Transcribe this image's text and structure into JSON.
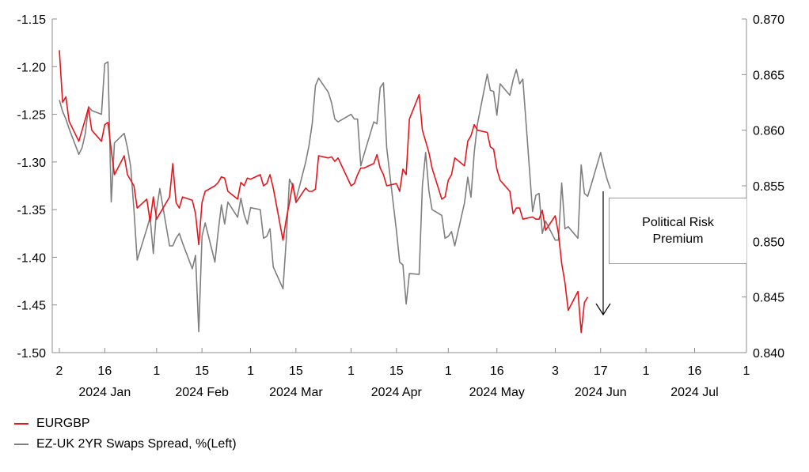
{
  "chart_data": {
    "type": "line",
    "title": "",
    "x_ticks": [
      {
        "date": "2024-01-02",
        "label": "2"
      },
      {
        "date": "2024-01-16",
        "label": "16"
      },
      {
        "date": "2024-02-01",
        "label": "1"
      },
      {
        "date": "2024-02-15",
        "label": "15"
      },
      {
        "date": "2024-03-01",
        "label": "1"
      },
      {
        "date": "2024-03-15",
        "label": "15"
      },
      {
        "date": "2024-04-01",
        "label": "1"
      },
      {
        "date": "2024-04-15",
        "label": "15"
      },
      {
        "date": "2024-05-01",
        "label": "1"
      },
      {
        "date": "2024-05-16",
        "label": "16"
      },
      {
        "date": "2024-06-03",
        "label": "3"
      },
      {
        "date": "2024-06-17",
        "label": "17"
      },
      {
        "date": "2024-07-01",
        "label": "1"
      },
      {
        "date": "2024-07-16",
        "label": "16"
      },
      {
        "date": "2024-08-01",
        "label": "1"
      }
    ],
    "month_labels": [
      {
        "date": "2024-01-16",
        "label": "2024 Jan"
      },
      {
        "date": "2024-02-15",
        "label": "2024 Feb"
      },
      {
        "date": "2024-03-15",
        "label": "2024 Mar"
      },
      {
        "date": "2024-04-15",
        "label": "2024 Apr"
      },
      {
        "date": "2024-05-16",
        "label": "2024 May"
      },
      {
        "date": "2024-06-17",
        "label": "2024 Jun"
      },
      {
        "date": "2024-07-16",
        "label": "2024 Jul"
      }
    ],
    "x_range": [
      "2024-01-02",
      "2024-08-01"
    ],
    "y_left": {
      "ylim": [
        -1.5,
        -1.15
      ],
      "ticks": [
        -1.15,
        -1.2,
        -1.25,
        -1.3,
        -1.35,
        -1.4,
        -1.45,
        -1.5
      ],
      "tick_labels": [
        "-1.15",
        "-1.20",
        "-1.25",
        "-1.30",
        "-1.35",
        "-1.40",
        "-1.45",
        "-1.50"
      ]
    },
    "y_right": {
      "ylim": [
        0.84,
        0.87
      ],
      "ticks": [
        0.87,
        0.865,
        0.86,
        0.855,
        0.85,
        0.845,
        0.84
      ],
      "tick_labels": [
        "0.870",
        "0.865",
        "0.860",
        "0.855",
        "0.850",
        "0.845",
        "0.840"
      ]
    },
    "grid": false,
    "legend_position": "bottom-left",
    "series": [
      {
        "name": "EURGBP",
        "axis": "right",
        "color": "#e8141b",
        "points": [
          [
            "2024-01-02",
            0.8672
          ],
          [
            "2024-01-03",
            0.8625
          ],
          [
            "2024-01-04",
            0.863
          ],
          [
            "2024-01-05",
            0.8608
          ],
          [
            "2024-01-08",
            0.859
          ],
          [
            "2024-01-09",
            0.86
          ],
          [
            "2024-01-10",
            0.861
          ],
          [
            "2024-01-11",
            0.862
          ],
          [
            "2024-01-12",
            0.86
          ],
          [
            "2024-01-15",
            0.859
          ],
          [
            "2024-01-16",
            0.8605
          ],
          [
            "2024-01-17",
            0.8607
          ],
          [
            "2024-01-18",
            0.8582
          ],
          [
            "2024-01-19",
            0.856
          ],
          [
            "2024-01-22",
            0.8577
          ],
          [
            "2024-01-23",
            0.856
          ],
          [
            "2024-01-24",
            0.8555
          ],
          [
            "2024-01-25",
            0.855
          ],
          [
            "2024-01-26",
            0.853
          ],
          [
            "2024-01-29",
            0.8538
          ],
          [
            "2024-01-30",
            0.8518
          ],
          [
            "2024-01-31",
            0.854
          ],
          [
            "2024-02-01",
            0.852
          ],
          [
            "2024-02-02",
            0.8525
          ],
          [
            "2024-02-05",
            0.854
          ],
          [
            "2024-02-06",
            0.857
          ],
          [
            "2024-02-07",
            0.8535
          ],
          [
            "2024-02-08",
            0.853
          ],
          [
            "2024-02-09",
            0.854
          ],
          [
            "2024-02-12",
            0.8537
          ],
          [
            "2024-02-13",
            0.8525
          ],
          [
            "2024-02-14",
            0.8497
          ],
          [
            "2024-02-15",
            0.8535
          ],
          [
            "2024-02-16",
            0.8545
          ],
          [
            "2024-02-19",
            0.855
          ],
          [
            "2024-02-20",
            0.8553
          ],
          [
            "2024-02-21",
            0.8558
          ],
          [
            "2024-02-22",
            0.8557
          ],
          [
            "2024-02-23",
            0.8545
          ],
          [
            "2024-02-26",
            0.8538
          ],
          [
            "2024-02-27",
            0.8553
          ],
          [
            "2024-02-28",
            0.855
          ],
          [
            "2024-02-29",
            0.8557
          ],
          [
            "2024-03-01",
            0.8556
          ],
          [
            "2024-03-04",
            0.856
          ],
          [
            "2024-03-05",
            0.855
          ],
          [
            "2024-03-06",
            0.8552
          ],
          [
            "2024-03-07",
            0.856
          ],
          [
            "2024-03-08",
            0.8548
          ],
          [
            "2024-03-11",
            0.8501
          ],
          [
            "2024-03-12",
            0.852
          ],
          [
            "2024-03-13",
            0.8535
          ],
          [
            "2024-03-14",
            0.8552
          ],
          [
            "2024-03-15",
            0.8535
          ],
          [
            "2024-03-18",
            0.8548
          ],
          [
            "2024-03-19",
            0.8545
          ],
          [
            "2024-03-20",
            0.8545
          ],
          [
            "2024-03-21",
            0.8547
          ],
          [
            "2024-03-22",
            0.8577
          ],
          [
            "2024-03-25",
            0.8575
          ],
          [
            "2024-03-26",
            0.8576
          ],
          [
            "2024-03-27",
            0.8572
          ],
          [
            "2024-03-28",
            0.8575
          ],
          [
            "2024-04-01",
            0.855
          ],
          [
            "2024-04-02",
            0.8552
          ],
          [
            "2024-04-03",
            0.856
          ],
          [
            "2024-04-04",
            0.8566
          ],
          [
            "2024-04-05",
            0.8566
          ],
          [
            "2024-04-08",
            0.857
          ],
          [
            "2024-04-09",
            0.8578
          ],
          [
            "2024-04-10",
            0.8566
          ],
          [
            "2024-04-11",
            0.856
          ],
          [
            "2024-04-12",
            0.855
          ],
          [
            "2024-04-15",
            0.8552
          ],
          [
            "2024-04-16",
            0.8545
          ],
          [
            "2024-04-17",
            0.8565
          ],
          [
            "2024-04-18",
            0.856
          ],
          [
            "2024-04-19",
            0.861
          ],
          [
            "2024-04-22",
            0.8632
          ],
          [
            "2024-04-23",
            0.86
          ],
          [
            "2024-04-24",
            0.859
          ],
          [
            "2024-04-25",
            0.858
          ],
          [
            "2024-04-26",
            0.8566
          ],
          [
            "2024-04-29",
            0.8538
          ],
          [
            "2024-04-30",
            0.854
          ],
          [
            "2024-05-01",
            0.8555
          ],
          [
            "2024-05-02",
            0.856
          ],
          [
            "2024-05-03",
            0.8575
          ],
          [
            "2024-05-06",
            0.8568
          ],
          [
            "2024-05-07",
            0.859
          ],
          [
            "2024-05-08",
            0.8595
          ],
          [
            "2024-05-09",
            0.8605
          ],
          [
            "2024-05-10",
            0.86
          ],
          [
            "2024-05-13",
            0.8598
          ],
          [
            "2024-05-14",
            0.8585
          ],
          [
            "2024-05-15",
            0.8583
          ],
          [
            "2024-05-16",
            0.8565
          ],
          [
            "2024-05-17",
            0.8555
          ],
          [
            "2024-05-20",
            0.8545
          ],
          [
            "2024-05-21",
            0.8525
          ],
          [
            "2024-05-22",
            0.853
          ],
          [
            "2024-05-23",
            0.853
          ],
          [
            "2024-05-24",
            0.852
          ],
          [
            "2024-05-27",
            0.8522
          ],
          [
            "2024-05-28",
            0.852
          ],
          [
            "2024-05-29",
            0.852
          ],
          [
            "2024-05-30",
            0.8528
          ],
          [
            "2024-05-31",
            0.851
          ],
          [
            "2024-06-03",
            0.8523
          ],
          [
            "2024-06-04",
            0.8507
          ],
          [
            "2024-06-05",
            0.848
          ],
          [
            "2024-06-06",
            0.8463
          ],
          [
            "2024-06-07",
            0.8438
          ],
          [
            "2024-06-10",
            0.8455
          ],
          [
            "2024-06-11",
            0.8418
          ],
          [
            "2024-06-12",
            0.8445
          ],
          [
            "2024-06-13",
            0.845
          ]
        ]
      },
      {
        "name": "EZ-UK 2YR Swaps Spread, %(Left)",
        "axis": "left",
        "color": "#7f7f7f",
        "points": [
          [
            "2024-01-02",
            -1.235
          ],
          [
            "2024-01-03",
            -1.247
          ],
          [
            "2024-01-04",
            -1.255
          ],
          [
            "2024-01-05",
            -1.265
          ],
          [
            "2024-01-08",
            -1.292
          ],
          [
            "2024-01-09",
            -1.285
          ],
          [
            "2024-01-10",
            -1.27
          ],
          [
            "2024-01-11",
            -1.242
          ],
          [
            "2024-01-12",
            -1.246
          ],
          [
            "2024-01-15",
            -1.25
          ],
          [
            "2024-01-16",
            -1.197
          ],
          [
            "2024-01-17",
            -1.195
          ],
          [
            "2024-01-18",
            -1.342
          ],
          [
            "2024-01-19",
            -1.28
          ],
          [
            "2024-01-22",
            -1.27
          ],
          [
            "2024-01-23",
            -1.285
          ],
          [
            "2024-01-24",
            -1.305
          ],
          [
            "2024-01-25",
            -1.35
          ],
          [
            "2024-01-26",
            -1.403
          ],
          [
            "2024-01-29",
            -1.37
          ],
          [
            "2024-01-30",
            -1.358
          ],
          [
            "2024-01-31",
            -1.396
          ],
          [
            "2024-02-01",
            -1.35
          ],
          [
            "2024-02-02",
            -1.328
          ],
          [
            "2024-02-05",
            -1.388
          ],
          [
            "2024-02-06",
            -1.388
          ],
          [
            "2024-02-07",
            -1.38
          ],
          [
            "2024-02-08",
            -1.375
          ],
          [
            "2024-02-09",
            -1.385
          ],
          [
            "2024-02-12",
            -1.412
          ],
          [
            "2024-02-13",
            -1.398
          ],
          [
            "2024-02-14",
            -1.478
          ],
          [
            "2024-02-15",
            -1.378
          ],
          [
            "2024-02-16",
            -1.364
          ],
          [
            "2024-02-19",
            -1.405
          ],
          [
            "2024-02-20",
            -1.373
          ],
          [
            "2024-02-21",
            -1.345
          ],
          [
            "2024-02-22",
            -1.365
          ],
          [
            "2024-02-23",
            -1.342
          ],
          [
            "2024-02-26",
            -1.358
          ],
          [
            "2024-02-27",
            -1.338
          ],
          [
            "2024-02-28",
            -1.355
          ],
          [
            "2024-02-29",
            -1.365
          ],
          [
            "2024-03-01",
            -1.348
          ],
          [
            "2024-03-04",
            -1.35
          ],
          [
            "2024-03-05",
            -1.38
          ],
          [
            "2024-03-06",
            -1.378
          ],
          [
            "2024-03-07",
            -1.37
          ],
          [
            "2024-03-08",
            -1.41
          ],
          [
            "2024-03-11",
            -1.433
          ],
          [
            "2024-03-12",
            -1.382
          ],
          [
            "2024-03-13",
            -1.318
          ],
          [
            "2024-03-14",
            -1.325
          ],
          [
            "2024-03-15",
            -1.34
          ],
          [
            "2024-03-18",
            -1.3
          ],
          [
            "2024-03-19",
            -1.283
          ],
          [
            "2024-03-20",
            -1.26
          ],
          [
            "2024-03-21",
            -1.22
          ],
          [
            "2024-03-22",
            -1.212
          ],
          [
            "2024-03-25",
            -1.227
          ],
          [
            "2024-03-26",
            -1.238
          ],
          [
            "2024-03-27",
            -1.255
          ],
          [
            "2024-03-28",
            -1.258
          ],
          [
            "2024-04-01",
            -1.25
          ],
          [
            "2024-04-02",
            -1.255
          ],
          [
            "2024-04-03",
            -1.255
          ],
          [
            "2024-04-04",
            -1.304
          ],
          [
            "2024-04-05",
            -1.292
          ],
          [
            "2024-04-08",
            -1.258
          ],
          [
            "2024-04-09",
            -1.26
          ],
          [
            "2024-04-10",
            -1.222
          ],
          [
            "2024-04-11",
            -1.217
          ],
          [
            "2024-04-12",
            -1.285
          ],
          [
            "2024-04-15",
            -1.372
          ],
          [
            "2024-04-16",
            -1.405
          ],
          [
            "2024-04-17",
            -1.408
          ],
          [
            "2024-04-18",
            -1.449
          ],
          [
            "2024-04-19",
            -1.417
          ],
          [
            "2024-04-22",
            -1.418
          ],
          [
            "2024-04-23",
            -1.325
          ],
          [
            "2024-04-24",
            -1.29
          ],
          [
            "2024-04-25",
            -1.33
          ],
          [
            "2024-04-26",
            -1.35
          ],
          [
            "2024-04-29",
            -1.356
          ],
          [
            "2024-04-30",
            -1.38
          ],
          [
            "2024-05-01",
            -1.378
          ],
          [
            "2024-05-02",
            -1.373
          ],
          [
            "2024-05-03",
            -1.388
          ],
          [
            "2024-05-06",
            -1.343
          ],
          [
            "2024-05-07",
            -1.316
          ],
          [
            "2024-05-08",
            -1.337
          ],
          [
            "2024-05-09",
            -1.29
          ],
          [
            "2024-05-10",
            -1.26
          ],
          [
            "2024-05-13",
            -1.208
          ],
          [
            "2024-05-14",
            -1.225
          ],
          [
            "2024-05-15",
            -1.226
          ],
          [
            "2024-05-16",
            -1.251
          ],
          [
            "2024-05-17",
            -1.218
          ],
          [
            "2024-05-20",
            -1.23
          ],
          [
            "2024-05-21",
            -1.214
          ],
          [
            "2024-05-22",
            -1.203
          ],
          [
            "2024-05-23",
            -1.218
          ],
          [
            "2024-05-24",
            -1.213
          ],
          [
            "2024-05-27",
            -1.352
          ],
          [
            "2024-05-28",
            -1.335
          ],
          [
            "2024-05-29",
            -1.333
          ],
          [
            "2024-05-30",
            -1.375
          ],
          [
            "2024-05-31",
            -1.362
          ],
          [
            "2024-06-03",
            -1.382
          ],
          [
            "2024-06-04",
            -1.382
          ],
          [
            "2024-06-05",
            -1.322
          ],
          [
            "2024-06-06",
            -1.37
          ],
          [
            "2024-06-07",
            -1.368
          ],
          [
            "2024-06-10",
            -1.38
          ],
          [
            "2024-06-11",
            -1.303
          ],
          [
            "2024-06-12",
            -1.333
          ],
          [
            "2024-06-13",
            -1.336
          ],
          [
            "2024-06-14",
            -1.325
          ],
          [
            "2024-06-17",
            -1.29
          ],
          [
            "2024-06-18",
            -1.305
          ],
          [
            "2024-06-19",
            -1.318
          ],
          [
            "2024-06-20",
            -1.328
          ]
        ]
      }
    ],
    "annotation": {
      "lines": [
        "Political Risk",
        "Premium"
      ],
      "arrow": "down"
    }
  },
  "legend": {
    "items": [
      {
        "label": "EURGBP",
        "color": "#e8141b"
      },
      {
        "label": "EZ-UK 2YR Swaps Spread, %(Left)",
        "color": "#7f7f7f"
      }
    ]
  }
}
